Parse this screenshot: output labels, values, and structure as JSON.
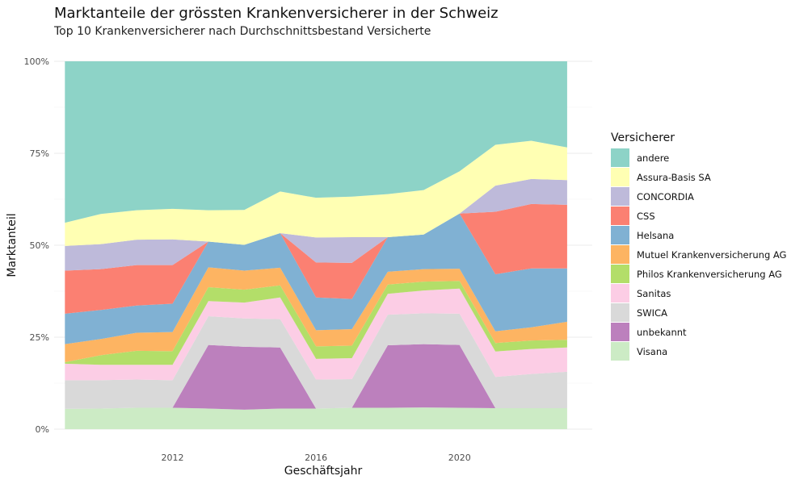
{
  "chart_data": {
    "type": "area",
    "stacked": true,
    "normalized": true,
    "title": "Marktanteile der grössten Krankenversicherer in der Schweiz",
    "subtitle": "Top 10 Krankenversicherer nach Durchschnittsbestand Versicherte",
    "xlabel": "Geschäftsjahr",
    "ylabel": "Marktanteil",
    "xlim": [
      2008.7,
      2023.7
    ],
    "ylim": [
      0,
      1
    ],
    "x_ticks": [
      2012,
      2016,
      2020
    ],
    "y_ticks": [
      0,
      0.25,
      0.5,
      0.75,
      1
    ],
    "y_tick_labels": [
      "0%",
      "25%",
      "50%",
      "75%",
      "100%"
    ],
    "grid": true,
    "legend_title": "Versicherer",
    "legend_position": "right",
    "x": [
      2009,
      2010,
      2011,
      2012,
      2013,
      2014,
      2015,
      2016,
      2017,
      2018,
      2019,
      2020,
      2021,
      2022,
      2023
    ],
    "series": [
      {
        "name": "Visana",
        "color": "#ccebc5",
        "values": [
          0.055,
          0.056,
          0.058,
          0.058,
          0.056,
          0.053,
          0.056,
          0.056,
          0.058,
          0.058,
          0.059,
          0.058,
          0.057,
          0.057,
          0.057
        ]
      },
      {
        "name": "unbekannt",
        "color": "#bc80bd",
        "values": [
          0,
          0,
          0,
          0,
          0.173,
          0.171,
          0.166,
          0,
          0,
          0.17,
          0.172,
          0.171,
          0,
          0,
          0
        ]
      },
      {
        "name": "SWICA",
        "color": "#d9d9d9",
        "values": [
          0.078,
          0.077,
          0.077,
          0.075,
          0.078,
          0.077,
          0.077,
          0.079,
          0.078,
          0.083,
          0.084,
          0.085,
          0.085,
          0.093,
          0.099
        ]
      },
      {
        "name": "Sanitas",
        "color": "#fccde5",
        "values": [
          0.045,
          0.042,
          0.04,
          0.042,
          0.041,
          0.043,
          0.059,
          0.056,
          0.057,
          0.057,
          0.062,
          0.068,
          0.069,
          0.068,
          0.066
        ]
      },
      {
        "name": "Philos Krankenversicherung AG",
        "color": "#b3de69",
        "values": [
          0.004,
          0.026,
          0.038,
          0.037,
          0.038,
          0.035,
          0.033,
          0.034,
          0.034,
          0.025,
          0.024,
          0.021,
          0.023,
          0.023,
          0.021
        ]
      },
      {
        "name": "Mutuel Krankenversicherung AG",
        "color": "#fdb462",
        "values": [
          0.049,
          0.044,
          0.049,
          0.052,
          0.054,
          0.052,
          0.048,
          0.044,
          0.045,
          0.035,
          0.034,
          0.033,
          0.032,
          0.036,
          0.049
        ]
      },
      {
        "name": "Helsana",
        "color": "#80b1d3",
        "values": [
          0.083,
          0.079,
          0.074,
          0.077,
          0.07,
          0.07,
          0.094,
          0.089,
          0.082,
          0.094,
          0.094,
          0.15,
          0.155,
          0.16,
          0.145
        ]
      },
      {
        "name": "CSS",
        "color": "#fb8072",
        "values": [
          0.117,
          0.111,
          0.11,
          0.105,
          0,
          0,
          0,
          0.095,
          0.098,
          0,
          0,
          0,
          0.17,
          0.175,
          0.173
        ]
      },
      {
        "name": "CONCORDIA",
        "color": "#bebada",
        "values": [
          0.067,
          0.068,
          0.069,
          0.07,
          0,
          0,
          0,
          0.068,
          0.07,
          0,
          0,
          0,
          0.071,
          0.068,
          0.067
        ]
      },
      {
        "name": "Assura-Basis SA",
        "color": "#ffffb3",
        "values": [
          0.063,
          0.082,
          0.08,
          0.083,
          0.085,
          0.095,
          0.113,
          0.108,
          0.11,
          0.117,
          0.121,
          0.115,
          0.111,
          0.104,
          0.089
        ]
      },
      {
        "name": "andere",
        "color": "#8dd3c7",
        "values": [
          0.439,
          0.415,
          0.405,
          0.401,
          0.405,
          0.404,
          0.354,
          0.371,
          0.368,
          0.361,
          0.35,
          0.299,
          0.227,
          0.216,
          0.234
        ]
      }
    ],
    "legend_order": [
      "andere",
      "Assura-Basis SA",
      "CONCORDIA",
      "CSS",
      "Helsana",
      "Mutuel Krankenversicherung AG",
      "Philos Krankenversicherung AG",
      "Sanitas",
      "SWICA",
      "unbekannt",
      "Visana"
    ]
  }
}
